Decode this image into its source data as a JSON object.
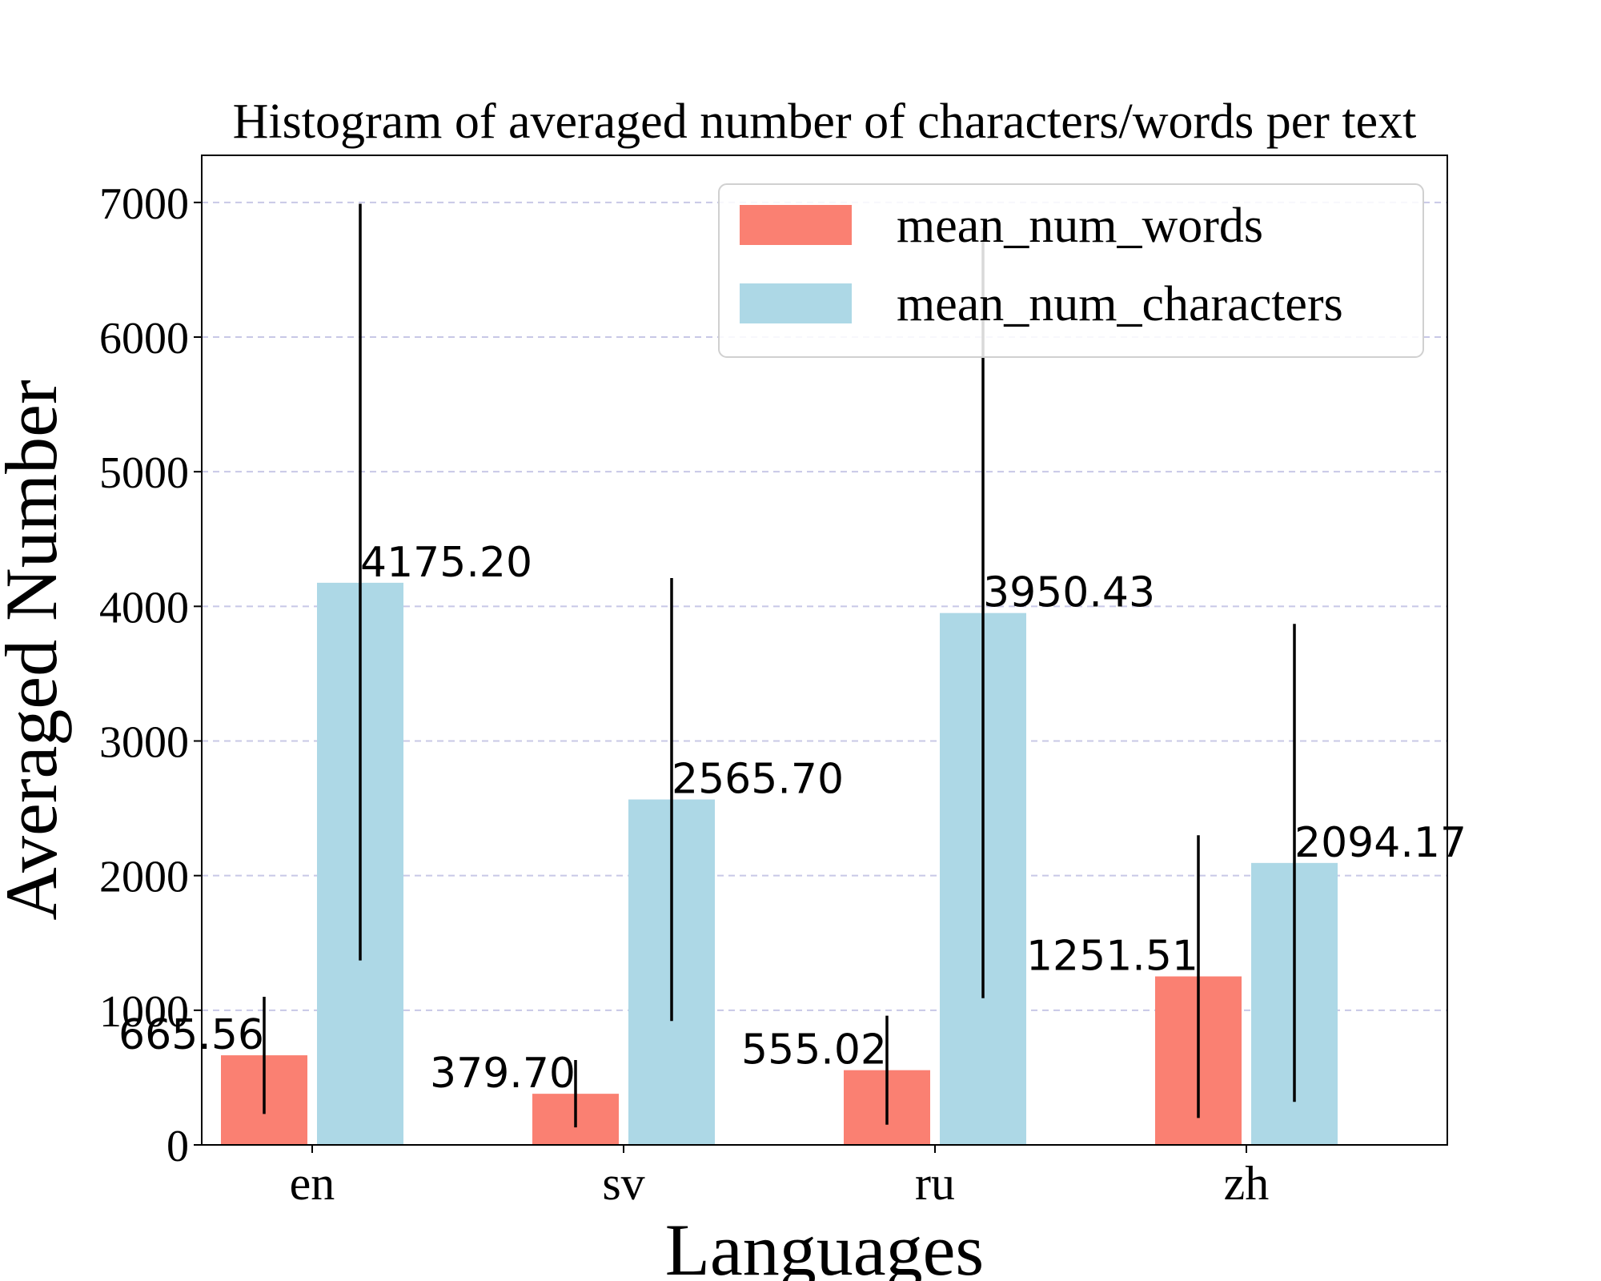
{
  "chart_data": {
    "type": "bar",
    "title": "Histogram of averaged number of characters/words per text",
    "xlabel": "Languages",
    "ylabel": "Averaged Number",
    "categories": [
      "en",
      "sv",
      "ru",
      "zh"
    ],
    "ylim": [
      0,
      7350
    ],
    "yticks": [
      0,
      1000,
      2000,
      3000,
      4000,
      5000,
      6000,
      7000
    ],
    "grid": true,
    "legend_position": "top-right",
    "series": [
      {
        "name": "mean_num_words",
        "color": "#FA8072",
        "values": [
          665.56,
          379.7,
          555.02,
          1251.51
        ],
        "labels": [
          "665.56",
          "379.70",
          "555.02",
          "1251.51"
        ],
        "error_low": [
          230,
          130,
          150,
          200
        ],
        "error_high": [
          1100,
          630,
          960,
          2300
        ]
      },
      {
        "name": "mean_num_characters",
        "color": "#ADD8E6",
        "values": [
          4175.2,
          2565.7,
          3950.43,
          2094.17
        ],
        "labels": [
          "4175.20",
          "2565.70",
          "3950.43",
          "2094.17"
        ],
        "error_low": [
          1370,
          920,
          1090,
          320
        ],
        "error_high": [
          6990,
          4210,
          6810,
          3870
        ]
      }
    ]
  }
}
